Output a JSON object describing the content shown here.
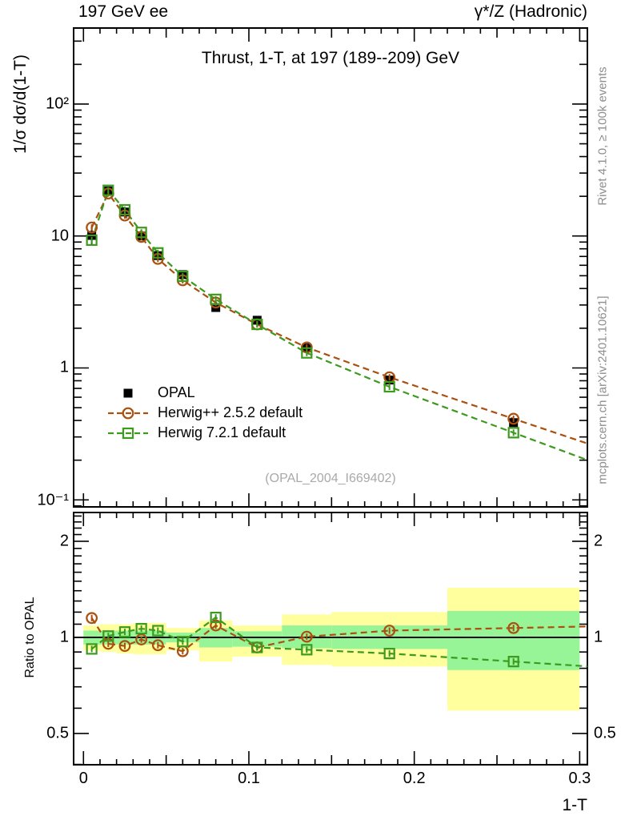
{
  "header": {
    "left": "197 GeV ee",
    "right": "γ*/Z (Hadronic)"
  },
  "title": "Thrust, 1-T, at 197 (189--209) GeV",
  "watermark": "(OPAL_2004_I669402)",
  "side_notes": {
    "top": "Rivet 4.1.0, ≥ 100k events",
    "bottom": "mcplots.cern.ch [arXiv:2401.10621]"
  },
  "legend": [
    {
      "label": "OPAL"
    },
    {
      "label": "Herwig++ 2.5.2 default"
    },
    {
      "label": "Herwig 7.2.1 default"
    }
  ],
  "axes": {
    "x_label": "1-T",
    "x_ticks": [
      {
        "v": 0,
        "label": "0"
      },
      {
        "v": 0.1,
        "label": "0.1"
      },
      {
        "v": 0.2,
        "label": "0.2"
      },
      {
        "v": 0.3,
        "label": "0.3"
      }
    ],
    "main_y_label": "1/σ  dσ/d(1-T)",
    "main_y_ticks": [
      {
        "v": 100,
        "label": "10²"
      },
      {
        "v": 10,
        "label": "10"
      },
      {
        "v": 1,
        "label": "1"
      },
      {
        "v": 0.1,
        "label": "10⁻¹"
      }
    ],
    "ratio_y_label": "Ratio to OPAL",
    "ratio_y_ticks": [
      {
        "v": 2,
        "label": "2"
      },
      {
        "v": 1,
        "label": "1"
      },
      {
        "v": 0.5,
        "label": "0.5"
      }
    ]
  },
  "colors": {
    "opal": "#000000",
    "herwigpp": "#aa5010",
    "herwig7": "#3c9a1e",
    "band_yellow": "#ffff9e",
    "band_green": "#97f597",
    "watermark": "#a9a9a9",
    "side_note": "#8e8e8e"
  },
  "chart_data": [
    {
      "type": "scatter",
      "panel": "main",
      "title": "Thrust, 1-T, at 197 (189--209) GeV",
      "xlabel": "1-T",
      "ylabel": "1/σ dσ/d(1-T)",
      "yscale": "log",
      "xlim": [
        -0.00595,
        0.30466
      ],
      "ylim": [
        0.0885,
        377
      ],
      "x": [
        0.005,
        0.015,
        0.025,
        0.035,
        0.045,
        0.06,
        0.08,
        0.105,
        0.135,
        0.185,
        0.26
      ],
      "series": [
        {
          "name": "OPAL",
          "marker": "filled-square",
          "line": "none",
          "color_key": "opal",
          "values": [
            10.1,
            22.0,
            15.2,
            10.0,
            7.1,
            5.1,
            2.87,
            2.3,
            1.42,
            0.81,
            0.385
          ],
          "err_frac": [
            0.16,
            0.03,
            0.025,
            0.02,
            0.02,
            0.02,
            0.025,
            0.02,
            0.03,
            0.04,
            0.06
          ]
        },
        {
          "name": "Herwig++ 2.5.2 default",
          "marker": "open-circle",
          "line": "dashed",
          "color_key": "herwigpp",
          "values": [
            11.6,
            21.0,
            14.3,
            9.85,
            6.71,
            4.62,
            3.13,
            2.14,
            1.43,
            0.85,
            0.412
          ]
        },
        {
          "name": "Herwig 7.2.1 default",
          "marker": "open-square",
          "line": "dashed",
          "color_key": "herwig7",
          "values": [
            9.3,
            22.2,
            15.8,
            10.65,
            7.45,
            4.95,
            3.31,
            2.14,
            1.3,
            0.72,
            0.323
          ]
        }
      ]
    },
    {
      "type": "line",
      "panel": "ratio",
      "ylabel": "Ratio to OPAL",
      "yscale": "log",
      "xlim": [
        -0.00595,
        0.30466
      ],
      "ylim": [
        0.399,
        2.462
      ],
      "reference_line": 1,
      "x": [
        0.005,
        0.015,
        0.025,
        0.035,
        0.045,
        0.06,
        0.08,
        0.105,
        0.135,
        0.185,
        0.26
      ],
      "series": [
        {
          "name": "Herwig++ 2.5.2 default / OPAL",
          "marker": "open-circle",
          "line": "dashed",
          "color_key": "herwigpp",
          "values": [
            1.15,
            0.955,
            0.94,
            0.985,
            0.945,
            0.905,
            1.09,
            0.93,
            1.005,
            1.05,
            1.07
          ]
        },
        {
          "name": "Herwig 7.2.1 default / OPAL",
          "marker": "open-square",
          "line": "dashed",
          "color_key": "herwig7",
          "values": [
            0.92,
            1.01,
            1.04,
            1.065,
            1.05,
            0.97,
            1.155,
            0.93,
            0.915,
            0.89,
            0.84
          ]
        }
      ],
      "bands": {
        "bin_edges": [
          0,
          0.01,
          0.02,
          0.03,
          0.04,
          0.05,
          0.07,
          0.09,
          0.12,
          0.15,
          0.22,
          0.3
        ],
        "yellow_hi": [
          1.09,
          1.1,
          1.1,
          1.11,
          1.11,
          1.07,
          1.13,
          1.09,
          1.18,
          1.2,
          1.43
        ],
        "yellow_lo": [
          0.91,
          0.9,
          0.89,
          0.885,
          0.885,
          0.91,
          0.84,
          0.87,
          0.82,
          0.81,
          0.59
        ],
        "green_hi": [
          1.05,
          1.05,
          1.05,
          1.05,
          1.05,
          1.035,
          1.07,
          1.045,
          1.09,
          1.09,
          1.21
        ],
        "green_lo": [
          0.95,
          0.95,
          0.95,
          0.95,
          0.95,
          0.965,
          0.93,
          0.935,
          0.925,
          0.92,
          0.79
        ]
      }
    }
  ]
}
